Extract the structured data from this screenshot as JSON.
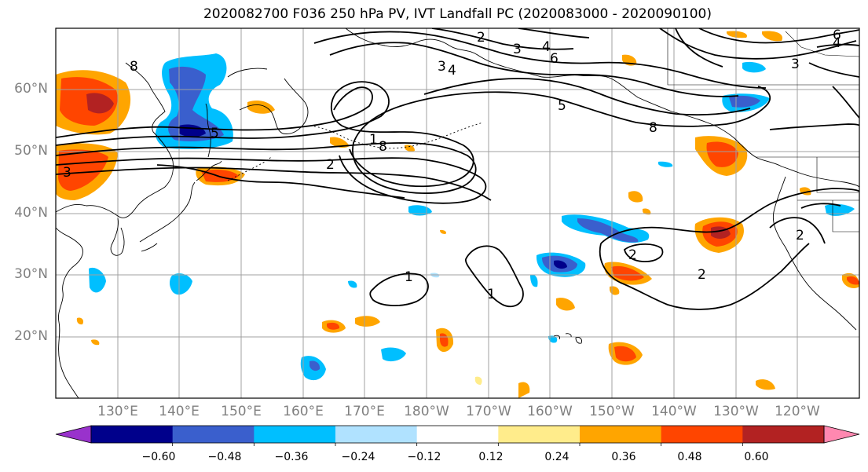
{
  "title": "2020082700 F036 250 hPa PV, IVT Landfall PC (2020083000 - 2020090100)",
  "lat_labels": [
    "60°N",
    "50°N",
    "40°N",
    "30°N",
    "20°N"
  ],
  "lon_labels": [
    "130°E",
    "140°E",
    "150°E",
    "160°E",
    "170°E",
    "180°W",
    "170°W",
    "160°W",
    "150°W",
    "140°W",
    "130°W",
    "120°W"
  ],
  "colorbar": {
    "ticks": [
      "−0.60",
      "−0.48",
      "−0.36",
      "−0.24",
      "−0.12",
      "0.12",
      "0.24",
      "0.36",
      "0.48",
      "0.60"
    ],
    "colors": [
      "#9932cc",
      "#00008b",
      "#3a5fcd",
      "#00bfff",
      "#b0e2ff",
      "#ffffff",
      "#ffec8b",
      "#ffa500",
      "#ff4500",
      "#b22222",
      "#ff88b0"
    ]
  },
  "contour_labels": [
    "2",
    "3",
    "4",
    "6",
    "8",
    "3",
    "4",
    "5",
    "1",
    "8",
    "2",
    "3",
    "5",
    "8",
    "1",
    "1",
    "2",
    "2",
    "2",
    "3",
    "4",
    "6"
  ],
  "colors": {
    "grid": "#a0a0a0",
    "coast": "#000000",
    "contour": "#000000",
    "tick_label": "#808080"
  }
}
